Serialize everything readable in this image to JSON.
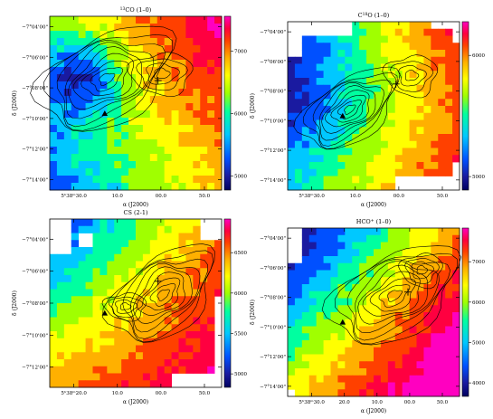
{
  "figure": {
    "panels": [
      {
        "id": "p1",
        "title": "13CO (1-0)",
        "title_sup": "13",
        "title_main": "CO (1–0)",
        "y_ticks": [
          "−7°04'00\"",
          "−7°06'00\"",
          "−7°08'00\"",
          "−7°10'00\"",
          "−7°12'00\"",
          "−7°14'00\""
        ],
        "x_ticks": [
          "5h38m30s.0",
          "10.0",
          "00.0",
          "50.0"
        ],
        "x_ticks_display": [
          "5ʰ38ᵐ30.0",
          "10.0",
          "00.0",
          "50.0"
        ],
        "xlabel": "α (J2000)",
        "ylabel": "δ (J2000)",
        "colorbar_ticks": [
          "7000",
          "6000",
          "5000"
        ]
      },
      {
        "id": "p2",
        "title": "C18O (1-0)",
        "title_sup": "18",
        "title_main": "O (1–0)",
        "y_ticks": [
          "−7°04'00\"",
          "−7°06'00\"",
          "−7°08'00\"",
          "−7°10'00\"",
          "−7°12'00\"",
          "−7°14'00\""
        ],
        "x_ticks": [
          "5h38m30s.0",
          "10.0",
          "00.0",
          "50.0"
        ],
        "x_ticks_display": [
          "5ʰ38ᵐ30.0",
          "10.0",
          "00.0",
          "50.0"
        ],
        "xlabel": "α (J2000)",
        "ylabel": "δ (J2000)",
        "colorbar_ticks": [
          "6000",
          "5000"
        ]
      },
      {
        "id": "p3",
        "title": "CS (2-1)",
        "y_ticks": [
          "−7°04'00\"",
          "−7°06'00\"",
          "−7°08'00\"",
          "−7°10'00\"",
          "−7°12'00\""
        ],
        "x_ticks": [
          "5h38m20s.0",
          "10.0",
          "00.0",
          "50.0"
        ],
        "x_ticks_display": [
          "5ʰ38ᵐ20.0",
          "10.0",
          "00.0",
          "50.0"
        ],
        "xlabel": "α (J2000)",
        "ylabel": "δ (J2000)",
        "colorbar_ticks": [
          "6500",
          "6000",
          "5500",
          "5000"
        ]
      },
      {
        "id": "p4",
        "title": "HCO+ (1-0)",
        "title_main": "HCO",
        "title_sup": "+",
        "title_tail": " (1–0)",
        "y_ticks": [
          "−7°04'00\"",
          "−7°06'00\"",
          "−7°08'00\"",
          "−7°10'00\"",
          "−7°12'00\"",
          "−7°14'00\""
        ],
        "x_ticks": [
          "5h38m30s.0",
          "20.0",
          "10.0",
          "00.0",
          "50.0"
        ],
        "x_ticks_display": [
          "5ʰ38ᵐ30.0",
          "20.0",
          "10.0",
          "00.0",
          "50.0"
        ],
        "xlabel": "α (J2000)",
        "ylabel": "δ (J2000)",
        "colorbar_ticks": [
          "7000",
          "6000",
          "5000",
          "4000"
        ]
      }
    ],
    "colors": {
      "colormap": [
        "#1a1aa0",
        "#0050ff",
        "#00c8ff",
        "#00ffa0",
        "#a0ff00",
        "#ffff00",
        "#ffb000",
        "#ff4000",
        "#ff0040",
        "#ff00c0"
      ],
      "contour": "#000000"
    }
  },
  "chart_data": [
    {
      "type": "heatmap",
      "title": "13CO (1-0)",
      "xlabel": "α (J2000)",
      "ylabel": "δ (J2000)",
      "colorbar_range": [
        5000,
        7500
      ],
      "grid": false
    },
    {
      "type": "heatmap",
      "title": "C18O (1-0)",
      "xlabel": "α (J2000)",
      "ylabel": "δ (J2000)",
      "colorbar_range": [
        4500,
        6800
      ],
      "grid": false
    },
    {
      "type": "heatmap",
      "title": "CS (2-1)",
      "xlabel": "α (J2000)",
      "ylabel": "δ (J2000)",
      "colorbar_range": [
        4800,
        6600
      ],
      "grid": false
    },
    {
      "type": "heatmap",
      "title": "HCO+ (1-0)",
      "xlabel": "α (J2000)",
      "ylabel": "δ (J2000)",
      "colorbar_range": [
        4000,
        7000
      ],
      "grid": false
    }
  ]
}
